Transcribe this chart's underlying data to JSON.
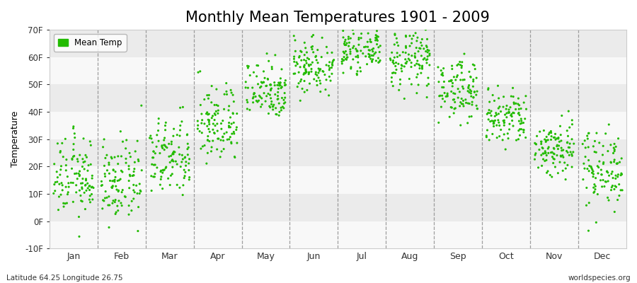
{
  "title": "Monthly Mean Temperatures 1901 - 2009",
  "ylabel": "Temperature",
  "ylim": [
    -10,
    70
  ],
  "yticks": [
    -10,
    0,
    10,
    20,
    30,
    40,
    50,
    60,
    70
  ],
  "ytick_labels": [
    "-10F",
    "0F",
    "10F",
    "20F",
    "30F",
    "40F",
    "50F",
    "60F",
    "70F"
  ],
  "months": [
    "Jan",
    "Feb",
    "Mar",
    "Apr",
    "May",
    "Jun",
    "Jul",
    "Aug",
    "Sep",
    "Oct",
    "Nov",
    "Dec"
  ],
  "dot_color": "#22bb00",
  "footer_left": "Latitude 64.25 Longitude 26.75",
  "footer_right": "worldspecies.org",
  "title_fontsize": 15,
  "month_means_C": [
    -9,
    -10,
    -5,
    2,
    9,
    14,
    17,
    15,
    9,
    3,
    -3,
    -7
  ],
  "month_stds_C": [
    4,
    4,
    4,
    4,
    3,
    3,
    2,
    3,
    3,
    3,
    3,
    4
  ],
  "n_years": 109,
  "band_color_light": "#ebebeb",
  "band_color_white": "#f8f8f8",
  "dashed_line_color": "#888888",
  "fig_bg": "#ffffff"
}
